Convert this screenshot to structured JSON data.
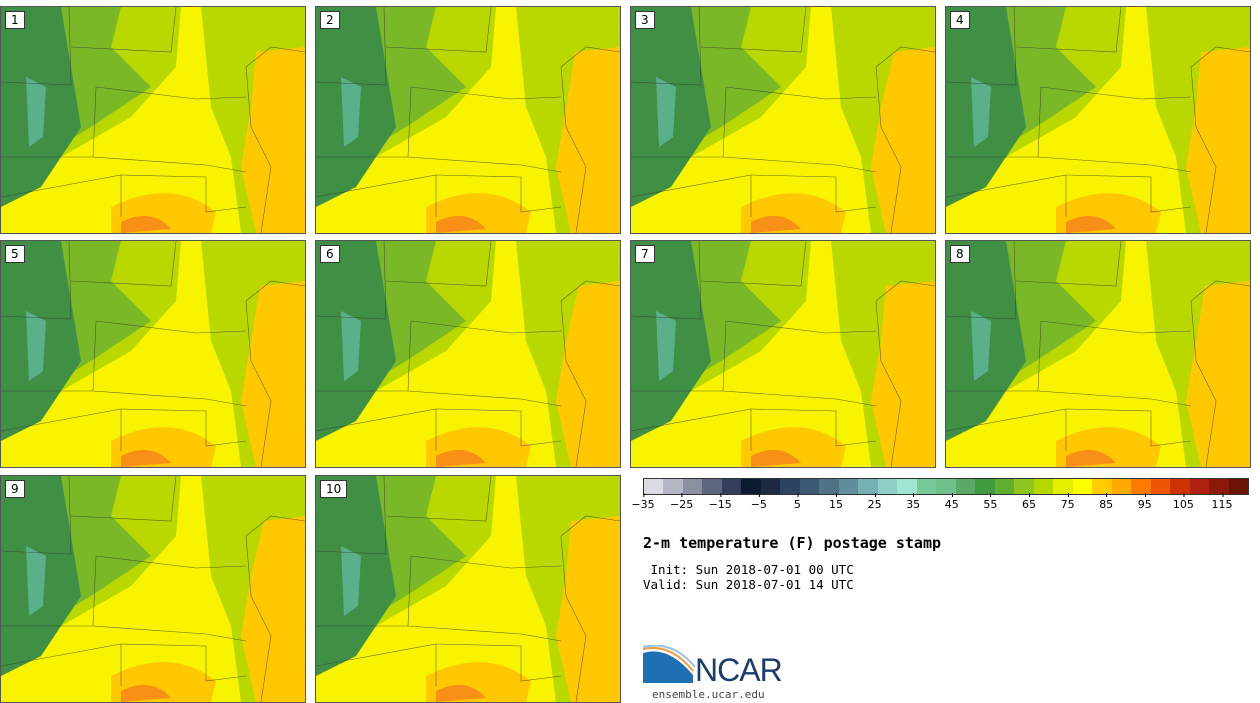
{
  "title": "2-m temperature (F) postage stamp",
  "init_line": " Init: Sun 2018-07-01 00 UTC",
  "valid_line": "Valid: Sun 2018-07-01 14 UTC",
  "website": "ensemble.ucar.edu",
  "logo_text": "NCAR",
  "members": [
    "1",
    "2",
    "3",
    "4",
    "5",
    "6",
    "7",
    "8",
    "9",
    "10"
  ],
  "colorbar": {
    "colors": [
      "#d9dde3",
      "#b3b8c4",
      "#8a90a2",
      "#5f6680",
      "#353d5c",
      "#0d1a33",
      "#1c2a44",
      "#2b4560",
      "#3d5a74",
      "#4f7286",
      "#5f8e9c",
      "#75b0b4",
      "#8ed0c8",
      "#9ee6d2",
      "#78c89a",
      "#6fc08a",
      "#58aa66",
      "#3f9a40",
      "#5fae2e",
      "#8cc61e",
      "#b4d800",
      "#e4ef00",
      "#ffff00",
      "#ffcc00",
      "#ffaa00",
      "#ff7a00",
      "#ee5500",
      "#cc3300",
      "#b02010",
      "#8b1a0a",
      "#6b1406"
    ],
    "ticks": [
      "−35",
      "−25",
      "−15",
      "−5",
      "5",
      "15",
      "25",
      "35",
      "45",
      "55",
      "65",
      "75",
      "85",
      "95",
      "105",
      "115"
    ]
  },
  "colors": {
    "green_dark": "#3f8f45",
    "green": "#7ab828",
    "lime": "#b8d800",
    "yellow": "#f8f400",
    "orange": "#ffc800",
    "hot": "#f89018",
    "mountain": "#5ab08a"
  }
}
